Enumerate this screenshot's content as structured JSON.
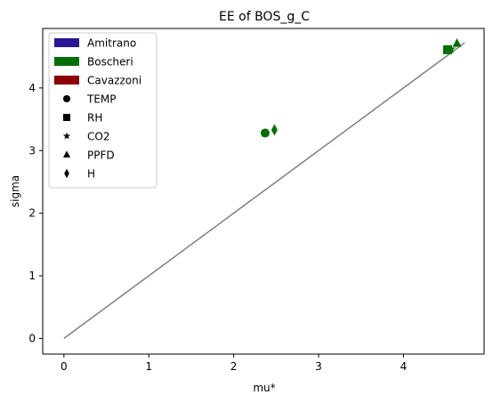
{
  "chart_data": {
    "type": "scatter",
    "title": "EE of BOS_g_C",
    "xlabel": "mu*",
    "ylabel": "sigma",
    "xlim": [
      -0.25,
      4.95
    ],
    "ylim": [
      -0.25,
      4.95
    ],
    "xticks": [
      0,
      1,
      2,
      3,
      4
    ],
    "yticks": [
      0,
      1,
      2,
      3,
      4
    ],
    "grid": false,
    "legend_position": "top-left",
    "reference_line": {
      "from": [
        0,
        0
      ],
      "to": [
        4.72,
        4.72
      ],
      "color": "#808080"
    },
    "groups": [
      {
        "name": "Amitrano",
        "color": "#2a1696"
      },
      {
        "name": "Boscheri",
        "color": "#007000"
      },
      {
        "name": "Cavazzoni",
        "color": "#8b0000"
      }
    ],
    "markers": [
      {
        "name": "TEMP",
        "shape": "circle"
      },
      {
        "name": "RH",
        "shape": "square"
      },
      {
        "name": "CO2",
        "shape": "star"
      },
      {
        "name": "PPFD",
        "shape": "triangle"
      },
      {
        "name": "H",
        "shape": "diamond"
      }
    ],
    "points": [
      {
        "group": "Boscheri",
        "marker": "TEMP",
        "x": 2.37,
        "y": 3.28
      },
      {
        "group": "Boscheri",
        "marker": "H",
        "x": 2.48,
        "y": 3.33
      },
      {
        "group": "Boscheri",
        "marker": "RH",
        "x": 4.52,
        "y": 4.61
      },
      {
        "group": "Boscheri",
        "marker": "CO2",
        "x": 4.56,
        "y": 4.62
      },
      {
        "group": "Boscheri",
        "marker": "PPFD",
        "x": 4.63,
        "y": 4.71
      }
    ]
  }
}
